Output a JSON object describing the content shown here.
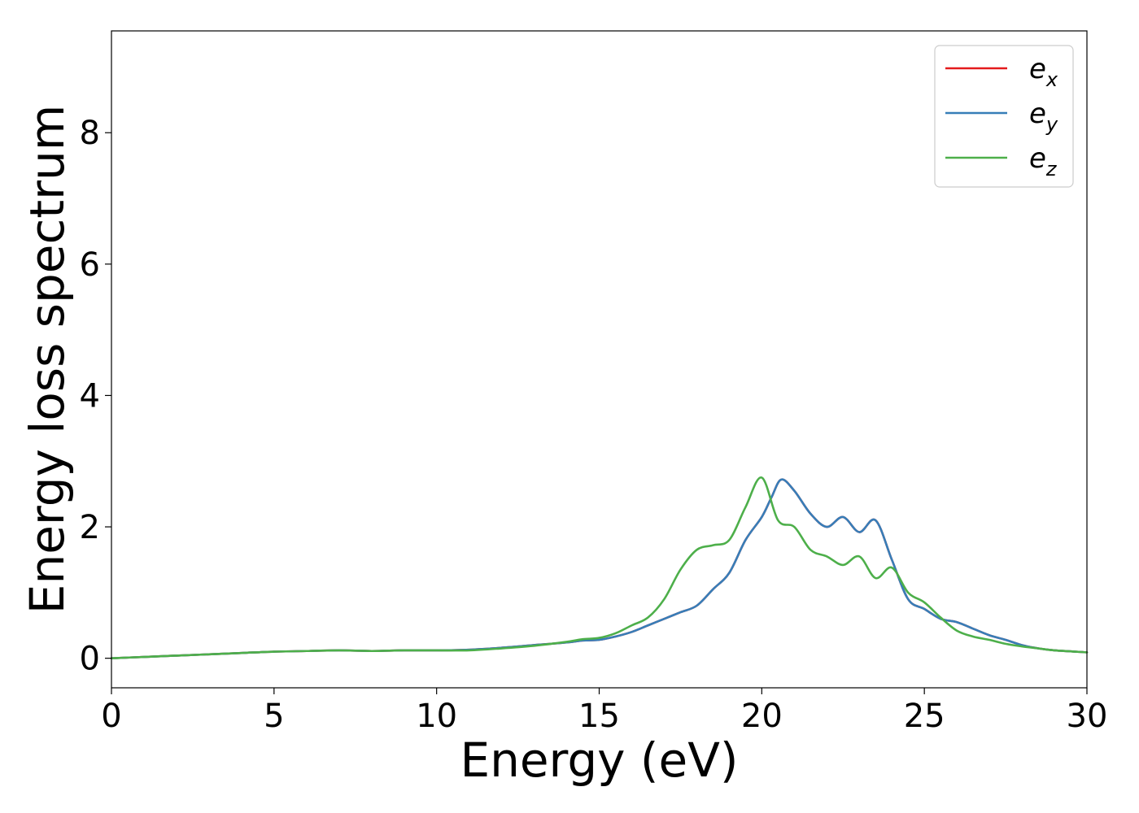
{
  "chart_data": {
    "type": "line",
    "xlabel": "Energy (eV)",
    "ylabel": "Energy loss spectrum",
    "xlim": [
      0,
      30
    ],
    "ylim": [
      -0.45,
      9.55
    ],
    "xticks": [
      "0",
      "5",
      "10",
      "15",
      "20",
      "25",
      "30"
    ],
    "yticks": [
      "0",
      "2",
      "4",
      "6",
      "8"
    ],
    "grid": false,
    "legend_position": "top-right",
    "series": [
      {
        "name": "e",
        "subscript": "x",
        "color": "#e41a1c",
        "x": [
          0,
          1,
          2,
          3,
          4,
          5,
          6,
          7,
          8,
          9,
          10,
          11,
          12,
          13,
          14,
          14.5,
          15,
          15.5,
          16,
          16.5,
          17,
          17.5,
          18,
          18.5,
          19,
          19.5,
          20,
          20.3,
          20.6,
          21,
          21.5,
          22,
          22.5,
          23,
          23.5,
          24,
          24.5,
          25,
          25.5,
          26,
          26.5,
          27,
          27.5,
          28,
          28.5,
          29,
          30
        ],
        "y": [
          0,
          0.02,
          0.04,
          0.06,
          0.08,
          0.1,
          0.11,
          0.12,
          0.11,
          0.12,
          0.12,
          0.13,
          0.16,
          0.2,
          0.24,
          0.27,
          0.28,
          0.33,
          0.4,
          0.5,
          0.6,
          0.7,
          0.8,
          1.05,
          1.3,
          1.8,
          2.15,
          2.45,
          2.72,
          2.55,
          2.2,
          2.0,
          2.15,
          1.92,
          2.1,
          1.5,
          0.9,
          0.75,
          0.6,
          0.55,
          0.45,
          0.35,
          0.28,
          0.2,
          0.15,
          0.12,
          0.09
        ]
      },
      {
        "name": "e",
        "subscript": "y",
        "color": "#377eb8",
        "x": [
          0,
          1,
          2,
          3,
          4,
          5,
          6,
          7,
          8,
          9,
          10,
          11,
          12,
          13,
          14,
          14.5,
          15,
          15.5,
          16,
          16.5,
          17,
          17.5,
          18,
          18.5,
          19,
          19.5,
          20,
          20.3,
          20.6,
          21,
          21.5,
          22,
          22.5,
          23,
          23.5,
          24,
          24.5,
          25,
          25.5,
          26,
          26.5,
          27,
          27.5,
          28,
          28.5,
          29,
          30
        ],
        "y": [
          0,
          0.02,
          0.04,
          0.06,
          0.08,
          0.1,
          0.11,
          0.12,
          0.11,
          0.12,
          0.12,
          0.13,
          0.16,
          0.2,
          0.24,
          0.27,
          0.28,
          0.33,
          0.4,
          0.5,
          0.6,
          0.7,
          0.8,
          1.05,
          1.3,
          1.8,
          2.15,
          2.45,
          2.72,
          2.55,
          2.2,
          2.0,
          2.15,
          1.92,
          2.1,
          1.5,
          0.9,
          0.75,
          0.6,
          0.55,
          0.45,
          0.35,
          0.28,
          0.2,
          0.15,
          0.12,
          0.09
        ]
      },
      {
        "name": "e",
        "subscript": "z",
        "color": "#4daf4a",
        "x": [
          0,
          1,
          2,
          3,
          4,
          5,
          6,
          7,
          8,
          9,
          10,
          11,
          12,
          13,
          14,
          14.5,
          15,
          15.5,
          16,
          16.5,
          17,
          17.5,
          18,
          18.5,
          19,
          19.5,
          20,
          20.5,
          21,
          21.5,
          22,
          22.5,
          23,
          23.5,
          24,
          24.5,
          25,
          25.5,
          26,
          26.5,
          27,
          27.5,
          28,
          28.5,
          29,
          30
        ],
        "y": [
          0,
          0.02,
          0.04,
          0.06,
          0.08,
          0.1,
          0.11,
          0.12,
          0.11,
          0.12,
          0.12,
          0.12,
          0.15,
          0.19,
          0.25,
          0.29,
          0.31,
          0.38,
          0.5,
          0.62,
          0.9,
          1.35,
          1.65,
          1.72,
          1.8,
          2.3,
          2.75,
          2.1,
          2.0,
          1.65,
          1.55,
          1.42,
          1.55,
          1.22,
          1.38,
          1.0,
          0.85,
          0.62,
          0.42,
          0.33,
          0.28,
          0.22,
          0.18,
          0.15,
          0.12,
          0.09
        ]
      }
    ]
  }
}
